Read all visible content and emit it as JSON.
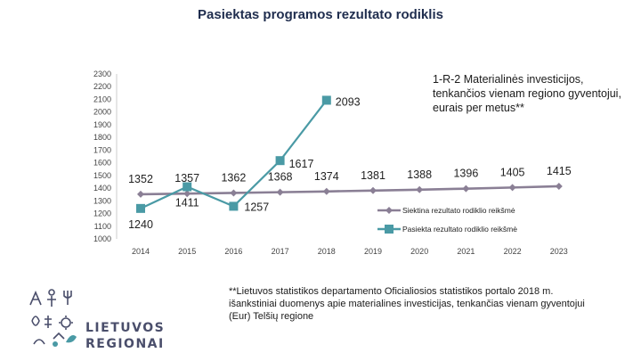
{
  "page": {
    "title": "Pasiektas programos rezultato rodiklis"
  },
  "annotation": {
    "text": "1-R-2 Materialinės investicijos, tenkančios vienam regiono gyventojui, eurais per metus**"
  },
  "source_note": {
    "text": "**Lietuvos statistikos departamento Oficialiosios statistikos portalo 2018 m. išankstiniai duomenys apie materialines investicijas, tenkančias vienam gyventojui (Eur) Telšių regione"
  },
  "logo": {
    "line1": "LIETUVOS",
    "line2": "REGIONAI"
  },
  "colors": {
    "target": "#8a7f95",
    "achieved": "#4a9aa5",
    "axis_text": "#444444"
  },
  "chart_data": {
    "type": "line",
    "title": "",
    "xlabel": "",
    "ylabel": "",
    "x": [
      "2014",
      "2015",
      "2016",
      "2017",
      "2018",
      "2019",
      "2020",
      "2021",
      "2022",
      "2023"
    ],
    "ylim": [
      1000,
      2300
    ],
    "yticks": [
      1000,
      1100,
      1200,
      1300,
      1400,
      1500,
      1600,
      1700,
      1800,
      1900,
      2000,
      2100,
      2200,
      2300
    ],
    "grid": false,
    "legend_position": "bottom-right",
    "series": [
      {
        "name": "Siektina rezultato rodiklio reikšmė",
        "marker": "diamond",
        "values": [
          1352,
          1357,
          1362,
          1368,
          1374,
          1381,
          1388,
          1396,
          1405,
          1415
        ],
        "labels": [
          "1352",
          "1357",
          "1362",
          "1368",
          "1374",
          "1381",
          "1388",
          "1396",
          "1405",
          "1415"
        ]
      },
      {
        "name": "Pasiekta rezultato rodiklio reikšmė",
        "marker": "square",
        "values": [
          1240,
          1411,
          1257,
          1617,
          2093,
          null,
          null,
          null,
          null,
          null
        ],
        "labels": [
          "1240",
          "1411",
          "1257",
          "1617",
          "2093",
          null,
          null,
          null,
          null,
          null
        ]
      }
    ]
  }
}
